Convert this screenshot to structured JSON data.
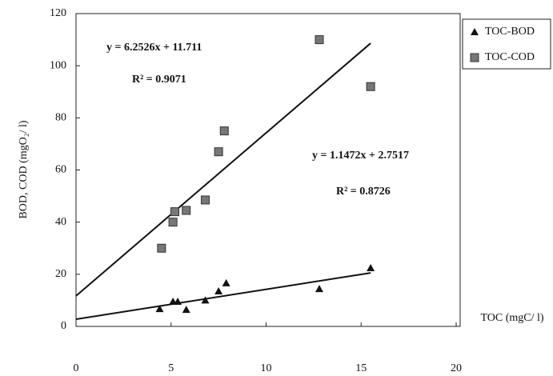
{
  "chart_data": {
    "type": "scatter",
    "y_label": "BOD, COD (mgO₂/ l)",
    "x_label": "TOC (mgC/ l)",
    "xlim": [
      0,
      20
    ],
    "xticks": [
      0,
      5,
      10,
      15,
      20
    ],
    "ylim": [
      0,
      120
    ],
    "yticks": [
      0,
      20,
      40,
      60,
      80,
      100,
      120
    ],
    "legend": "right",
    "series": [
      {
        "name": "TOC-BOD",
        "marker": "triangle",
        "color": "#111111",
        "x": [
          4.4,
          5.1,
          5.35,
          5.8,
          6.8,
          7.5,
          7.9,
          12.8,
          15.5
        ],
        "values": [
          6.7,
          9.5,
          9.5,
          6.4,
          10,
          13.5,
          16.6,
          14.4,
          22.4
        ],
        "trendline": {
          "slope": 1.1472,
          "intercept": 2.7517,
          "x": [
            0,
            15.5
          ],
          "equation": "y = 1.1472x + 2.7517",
          "r2": "R² = 0.8726"
        }
      },
      {
        "name": "TOC-COD",
        "marker": "square",
        "color": "#777777",
        "x": [
          4.5,
          5.1,
          5.2,
          5.8,
          6.8,
          7.5,
          7.8,
          12.8,
          15.5
        ],
        "values": [
          30,
          40,
          44,
          44.5,
          48.5,
          67,
          75,
          110,
          92
        ],
        "trendline": {
          "slope": 6.2526,
          "intercept": 11.711,
          "x": [
            0,
            15.5
          ],
          "equation": "y = 6.2526x + 11.711",
          "r2": "R² = 0.9071"
        }
      }
    ]
  }
}
